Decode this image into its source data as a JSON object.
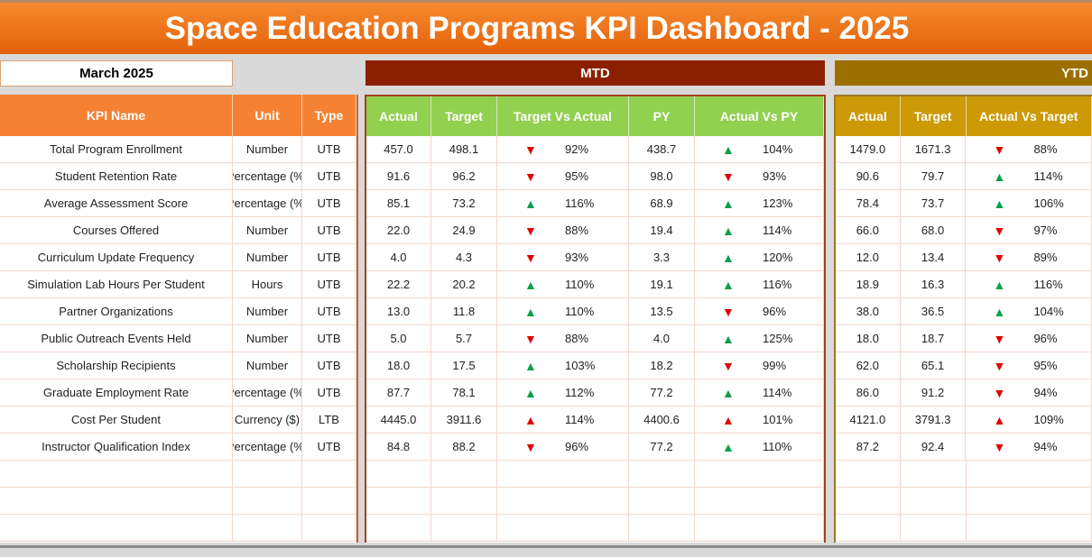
{
  "title": "Space Education Programs KPI Dashboard - 2025",
  "selected_month": "March 2025",
  "mtd_label": "MTD",
  "ytd_label": "YTD",
  "colors": {
    "good": "#0aa04a",
    "bad": "#e00000"
  },
  "headers": {
    "kpi": "KPI Name",
    "unit": "Unit",
    "type": "Type",
    "mtd": [
      "Actual",
      "Target",
      "Target Vs Actual",
      "PY",
      "Actual Vs PY"
    ],
    "ytd": [
      "Actual",
      "Target",
      "Actual Vs Target"
    ]
  },
  "rows": [
    [
      "Total Program Enrollment",
      "Number",
      "UTB",
      "457.0",
      "498.1",
      "down",
      "92%",
      "438.7",
      "up",
      "104%",
      "1479.0",
      "1671.3",
      "down",
      "88%"
    ],
    [
      "Student Retention Rate",
      "Percentage (%)",
      "UTB",
      "91.6",
      "96.2",
      "down",
      "95%",
      "98.0",
      "down",
      "93%",
      "90.6",
      "79.7",
      "up",
      "114%"
    ],
    [
      "Average Assessment Score",
      "Percentage (%)",
      "UTB",
      "85.1",
      "73.2",
      "up",
      "116%",
      "68.9",
      "up",
      "123%",
      "78.4",
      "73.7",
      "up",
      "106%"
    ],
    [
      "Courses Offered",
      "Number",
      "UTB",
      "22.0",
      "24.9",
      "down",
      "88%",
      "19.4",
      "up",
      "114%",
      "66.0",
      "68.0",
      "down",
      "97%"
    ],
    [
      "Curriculum Update Frequency",
      "Number",
      "UTB",
      "4.0",
      "4.3",
      "down",
      "93%",
      "3.3",
      "up",
      "120%",
      "12.0",
      "13.4",
      "down",
      "89%"
    ],
    [
      "Simulation Lab Hours Per Student",
      "Hours",
      "UTB",
      "22.2",
      "20.2",
      "up",
      "110%",
      "19.1",
      "up",
      "116%",
      "18.9",
      "16.3",
      "up",
      "116%"
    ],
    [
      "Partner Organizations",
      "Number",
      "UTB",
      "13.0",
      "11.8",
      "up",
      "110%",
      "13.5",
      "down",
      "96%",
      "38.0",
      "36.5",
      "up",
      "104%"
    ],
    [
      "Public Outreach Events Held",
      "Number",
      "UTB",
      "5.0",
      "5.7",
      "down",
      "88%",
      "4.0",
      "up",
      "125%",
      "18.0",
      "18.7",
      "down",
      "96%"
    ],
    [
      "Scholarship Recipients",
      "Number",
      "UTB",
      "18.0",
      "17.5",
      "up",
      "103%",
      "18.2",
      "down",
      "99%",
      "62.0",
      "65.1",
      "down",
      "95%"
    ],
    [
      "Graduate Employment Rate",
      "Percentage (%)",
      "UTB",
      "87.7",
      "78.1",
      "up",
      "112%",
      "77.2",
      "up",
      "114%",
      "86.0",
      "91.2",
      "down",
      "94%"
    ],
    [
      "Cost Per Student",
      "Currency ($)",
      "LTB",
      "4445.0",
      "3911.6",
      "up",
      "114%",
      "4400.6",
      "up",
      "101%",
      "4121.0",
      "3791.3",
      "up",
      "109%"
    ],
    [
      "Instructor Qualification Index",
      "Percentage (%)",
      "UTB",
      "84.8",
      "88.2",
      "down",
      "96%",
      "77.2",
      "up",
      "110%",
      "87.2",
      "92.4",
      "down",
      "94%"
    ]
  ],
  "empty_rows": 3
}
